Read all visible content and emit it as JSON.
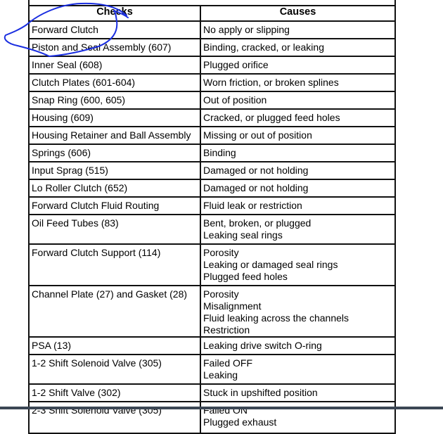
{
  "table": {
    "headers": [
      "Checks",
      "Causes"
    ],
    "rows": [
      {
        "check": "Forward Clutch",
        "causes": [
          "No apply or slipping"
        ],
        "indent": false
      },
      {
        "check": "Piston and Seal Assembly (607)",
        "causes": [
          "Binding, cracked, or leaking"
        ],
        "indent": false
      },
      {
        "check": "Inner Seal (608)",
        "causes": [
          "Plugged orifice"
        ],
        "indent": false
      },
      {
        "check": "Clutch Plates (601-604)",
        "causes": [
          "Worn friction, or broken splines"
        ],
        "indent": false
      },
      {
        "check": "Snap Ring (600, 605)",
        "causes": [
          "Out of position"
        ],
        "indent": false
      },
      {
        "check": "Housing (609)",
        "causes": [
          "Cracked, or plugged feed holes"
        ],
        "indent": false
      },
      {
        "check": "Housing Retainer and Ball Assembly",
        "causes": [
          "Missing or out of position"
        ],
        "indent": false
      },
      {
        "check": "Springs (606)",
        "causes": [
          "Binding"
        ],
        "indent": false
      },
      {
        "check": "Input Sprag (515)",
        "causes": [
          "Damaged or not holding"
        ],
        "indent": false
      },
      {
        "check": "Lo Roller Clutch (652)",
        "causes": [
          "Damaged or not holding"
        ],
        "indent": false
      },
      {
        "check": "Forward Clutch Fluid Routing",
        "causes": [
          "Fluid leak or restriction"
        ],
        "indent": false
      },
      {
        "check": "Oil Feed Tubes (83)",
        "causes": [
          "Bent, broken, or plugged",
          "Leaking seal rings"
        ],
        "indent": true
      },
      {
        "check": "Forward Clutch Support (114)",
        "causes": [
          "Porosity",
          "Leaking or damaged seal rings",
          "Plugged feed holes"
        ],
        "indent": true
      },
      {
        "check": "Channel Plate (27) and Gasket (28)",
        "causes": [
          "Porosity",
          "Misalignment",
          "Fluid leaking across the channels",
          "Restriction"
        ],
        "indent": true
      },
      {
        "check": "PSA (13)",
        "causes": [
          "Leaking drive switch O-ring"
        ],
        "indent": false
      },
      {
        "check": "1-2 Shift Solenoid Valve (305)",
        "causes": [
          "Failed OFF",
          "Leaking"
        ],
        "indent": true
      },
      {
        "check": "1-2 Shift Valve (302)",
        "causes": [
          "Stuck in upshifted position"
        ],
        "indent": false
      },
      {
        "check": "2-3 Shift Solenoid Valve (305)",
        "causes": [
          "Failed ON",
          "Plugged exhaust"
        ],
        "indent": true
      }
    ]
  },
  "annotation": {
    "color": "#1a2ee0"
  }
}
